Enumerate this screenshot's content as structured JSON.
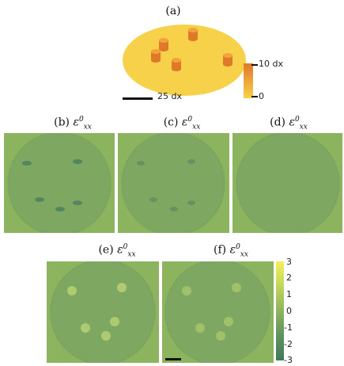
{
  "panel_a": {
    "label": "(a)",
    "scale_bar_label": "25 dx",
    "height_colorbar": {
      "top_label": "10 dx",
      "bottom_label": "0"
    },
    "colors": {
      "ellipse": "#f7d14a",
      "cylinder_top": "#f2a33a",
      "cylinder_side": "#e0782a"
    }
  },
  "strain_panels": [
    {
      "id": "b",
      "label": "(b)",
      "symbol": "ε",
      "sup": "0",
      "sub": "xx"
    },
    {
      "id": "c",
      "label": "(c)",
      "symbol": "ε",
      "sup": "0",
      "sub": "xx"
    },
    {
      "id": "d",
      "label": "(d)",
      "symbol": "ε",
      "sup": "0",
      "sub": "xx"
    },
    {
      "id": "e",
      "label": "(e)",
      "symbol": "ε",
      "sup": "0",
      "sub": "xx"
    },
    {
      "id": "f",
      "label": "(f)",
      "symbol": "ε",
      "sup": "0",
      "sub": "xx"
    }
  ],
  "strain_colorbar": {
    "ticks": [
      "3",
      "2",
      "1",
      "0",
      "-1",
      "-2",
      "-3"
    ],
    "colors": {
      "top": "#f4ef5a",
      "mid": "#8fb35e",
      "bottom": "#3f7a5a"
    }
  },
  "colors": {
    "background_green": "#8cb35e",
    "disk_green": "#7faa62"
  }
}
